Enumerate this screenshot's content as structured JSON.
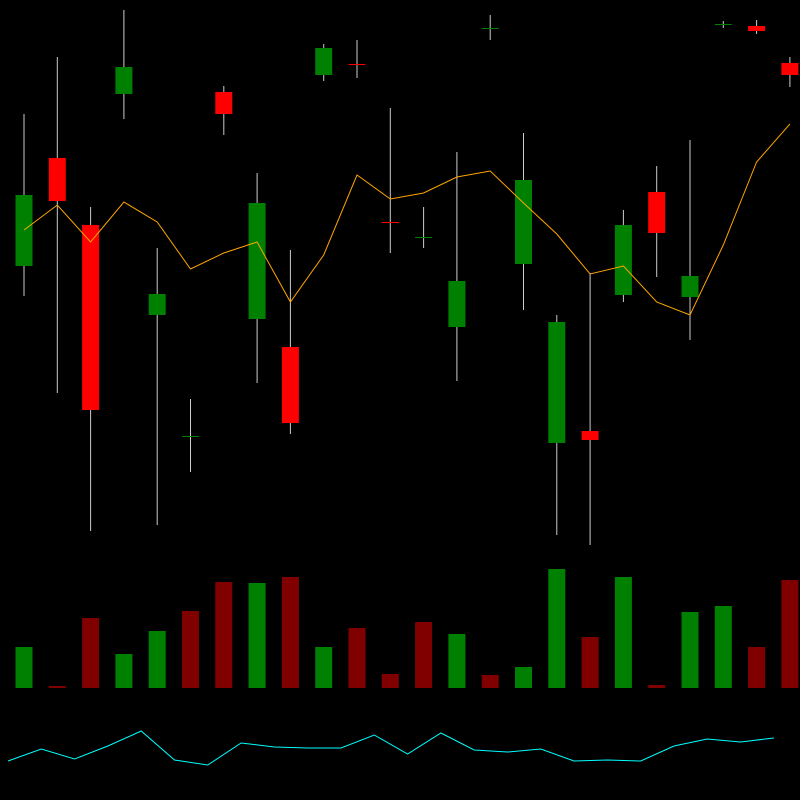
{
  "chart_data": [
    {
      "type": "candlestick",
      "open": [
        294,
        402,
        335,
        466,
        245,
        124,
        468,
        241,
        213,
        485,
        496,
        338,
        323,
        233,
        532,
        296,
        117,
        129,
        265,
        368,
        263,
        535,
        534,
        497
      ],
      "high": [
        446,
        503,
        353,
        550,
        312,
        161,
        474,
        387,
        310,
        516,
        520,
        452,
        353,
        408,
        545,
        427,
        245,
        287,
        350,
        394,
        420,
        539,
        540,
        503
      ],
      "low": [
        264,
        167,
        29,
        441,
        35,
        88,
        425,
        177,
        126,
        479,
        482,
        307,
        312,
        179,
        520,
        250,
        25,
        15,
        258,
        283,
        220,
        532,
        526,
        473
      ],
      "close": [
        365,
        359,
        150,
        493,
        266,
        124,
        446,
        357,
        137,
        512,
        495,
        337,
        323,
        279,
        532,
        380,
        238,
        120,
        335,
        327,
        284,
        536,
        529,
        485
      ],
      "moving_average": [
        330,
        355,
        318,
        358,
        338,
        291,
        307,
        318,
        258,
        305,
        385,
        361,
        367,
        383,
        389,
        357,
        326,
        286,
        294,
        258,
        245,
        315,
        398,
        436
      ],
      "up_color": "#008000",
      "down_color": "#ff0000",
      "wick_color": "#cccccc",
      "moving_average_color": "#ffa500",
      "ylim": [
        0,
        560
      ]
    },
    {
      "type": "bar",
      "values": [
        41,
        2,
        70,
        34,
        57,
        77,
        106,
        105,
        111,
        41,
        60,
        14,
        66,
        54,
        13,
        21,
        119,
        51,
        111,
        3,
        76,
        82,
        41,
        108
      ],
      "colors": [
        "#008000",
        "#800000",
        "#800000",
        "#008000",
        "#008000",
        "#800000",
        "#800000",
        "#008000",
        "#800000",
        "#008000",
        "#800000",
        "#800000",
        "#800000",
        "#008000",
        "#800000",
        "#008000",
        "#008000",
        "#800000",
        "#008000",
        "#800000",
        "#008000",
        "#008000",
        "#800000",
        "#800000"
      ],
      "ylim": [
        0,
        128
      ]
    },
    {
      "type": "line",
      "values": [
        39,
        51,
        41,
        54,
        69,
        40,
        35,
        57,
        53,
        52,
        52,
        65,
        46,
        67,
        50,
        48,
        51,
        39,
        40,
        39,
        54,
        61,
        58,
        62
      ],
      "color": "#00ffff",
      "ylim": [
        0,
        100
      ]
    }
  ]
}
